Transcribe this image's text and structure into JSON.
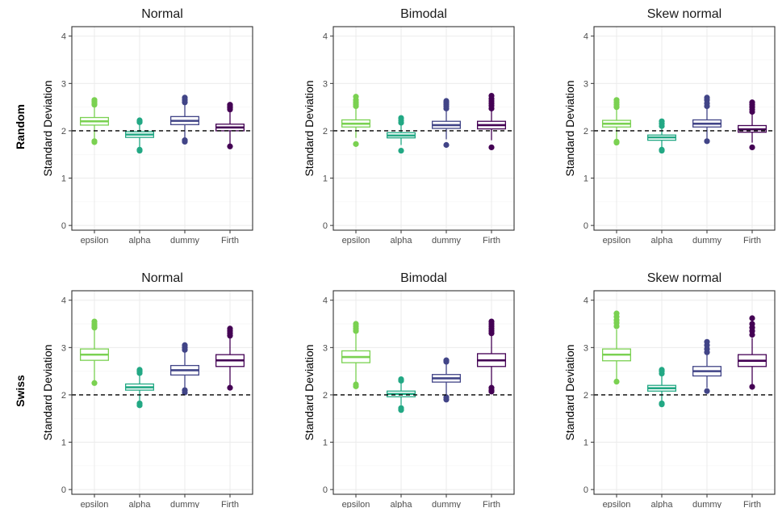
{
  "row_labels": [
    "Random",
    "Swiss"
  ],
  "colors": {
    "epsilon": "#7AD151",
    "alpha": "#22A884",
    "dummy": "#414487",
    "Firth": "#440154"
  },
  "chart_data": [
    {
      "type": "boxplot",
      "row": "Random",
      "title": "Normal",
      "ylabel": "Standard Deviation",
      "ylim": [
        -0.1,
        4.2
      ],
      "yticks": [
        0,
        1,
        2,
        3,
        4
      ],
      "reference_line": 2,
      "categories": [
        "epsilon",
        "alpha",
        "dummy",
        "Firth"
      ],
      "boxes": [
        {
          "name": "epsilon",
          "low": 1.8,
          "q1": 2.12,
          "median": 2.2,
          "q3": 2.28,
          "high": 2.5,
          "outliers": [
            2.55,
            2.58,
            2.62,
            2.65,
            1.78,
            1.76
          ]
        },
        {
          "name": "alpha",
          "low": 1.65,
          "q1": 1.86,
          "median": 1.92,
          "q3": 1.98,
          "high": 2.15,
          "outliers": [
            2.18,
            2.2,
            2.22,
            1.6,
            1.58
          ]
        },
        {
          "name": "dummy",
          "low": 1.82,
          "q1": 2.13,
          "median": 2.21,
          "q3": 2.3,
          "high": 2.55,
          "outliers": [
            2.6,
            2.65,
            2.7,
            1.8,
            1.77
          ]
        },
        {
          "name": "Firth",
          "low": 1.72,
          "q1": 2.0,
          "median": 2.07,
          "q3": 2.14,
          "high": 2.42,
          "outliers": [
            2.45,
            2.48,
            2.5,
            2.53,
            2.55,
            1.67
          ]
        }
      ]
    },
    {
      "type": "boxplot",
      "row": "Random",
      "title": "Bimodal",
      "ylabel": "Standard Deviation",
      "ylim": [
        -0.1,
        4.2
      ],
      "yticks": [
        0,
        1,
        2,
        3,
        4
      ],
      "reference_line": 2,
      "categories": [
        "epsilon",
        "alpha",
        "dummy",
        "Firth"
      ],
      "boxes": [
        {
          "name": "epsilon",
          "low": 1.85,
          "q1": 2.08,
          "median": 2.15,
          "q3": 2.23,
          "high": 2.48,
          "outliers": [
            2.52,
            2.56,
            2.6,
            2.65,
            2.72,
            1.72
          ]
        },
        {
          "name": "alpha",
          "low": 1.7,
          "q1": 1.85,
          "median": 1.9,
          "q3": 1.96,
          "high": 2.12,
          "outliers": [
            2.17,
            2.22,
            2.27,
            1.58
          ]
        },
        {
          "name": "dummy",
          "low": 1.82,
          "q1": 2.05,
          "median": 2.12,
          "q3": 2.2,
          "high": 2.42,
          "outliers": [
            2.47,
            2.52,
            2.56,
            2.6,
            2.63,
            1.7
          ]
        },
        {
          "name": "Firth",
          "low": 1.8,
          "q1": 2.04,
          "median": 2.12,
          "q3": 2.2,
          "high": 2.42,
          "outliers": [
            2.47,
            2.53,
            2.58,
            2.63,
            2.68,
            2.74,
            1.65
          ]
        }
      ]
    },
    {
      "type": "boxplot",
      "row": "Random",
      "title": "Skew normal",
      "ylabel": "Standard Deviation",
      "ylim": [
        -0.1,
        4.2
      ],
      "yticks": [
        0,
        1,
        2,
        3,
        4
      ],
      "reference_line": 2,
      "categories": [
        "epsilon",
        "alpha",
        "dummy",
        "Firth"
      ],
      "boxes": [
        {
          "name": "epsilon",
          "low": 1.82,
          "q1": 2.08,
          "median": 2.15,
          "q3": 2.22,
          "high": 2.45,
          "outliers": [
            2.5,
            2.55,
            2.6,
            2.65,
            1.77,
            1.75
          ]
        },
        {
          "name": "alpha",
          "low": 1.65,
          "q1": 1.8,
          "median": 1.86,
          "q3": 1.91,
          "high": 2.06,
          "outliers": [
            2.1,
            2.15,
            2.2,
            1.6,
            1.58
          ]
        },
        {
          "name": "dummy",
          "low": 1.83,
          "q1": 2.08,
          "median": 2.15,
          "q3": 2.23,
          "high": 2.48,
          "outliers": [
            2.52,
            2.58,
            2.65,
            2.7,
            1.78
          ]
        },
        {
          "name": "Firth",
          "low": 1.75,
          "q1": 1.97,
          "median": 2.03,
          "q3": 2.11,
          "high": 2.35,
          "outliers": [
            2.4,
            2.45,
            2.5,
            2.55,
            2.6,
            1.65
          ]
        }
      ]
    },
    {
      "type": "boxplot",
      "row": "Swiss",
      "title": "Normal",
      "ylabel": "Standard Deviation",
      "ylim": [
        -0.1,
        4.2
      ],
      "yticks": [
        0,
        1,
        2,
        3,
        4
      ],
      "reference_line": 2,
      "categories": [
        "epsilon",
        "alpha",
        "dummy",
        "Firth"
      ],
      "boxes": [
        {
          "name": "epsilon",
          "low": 2.3,
          "q1": 2.73,
          "median": 2.85,
          "q3": 2.97,
          "high": 3.38,
          "outliers": [
            3.42,
            3.46,
            3.5,
            3.55,
            2.25
          ]
        },
        {
          "name": "alpha",
          "low": 1.88,
          "q1": 2.1,
          "median": 2.16,
          "q3": 2.23,
          "high": 2.42,
          "outliers": [
            2.46,
            2.5,
            2.53,
            1.82,
            1.78
          ]
        },
        {
          "name": "dummy",
          "low": 2.15,
          "q1": 2.42,
          "median": 2.52,
          "q3": 2.62,
          "high": 2.9,
          "outliers": [
            2.95,
            3.0,
            3.05,
            2.1,
            2.05
          ]
        },
        {
          "name": "Firth",
          "low": 2.18,
          "q1": 2.6,
          "median": 2.73,
          "q3": 2.85,
          "high": 3.2,
          "outliers": [
            3.25,
            3.3,
            3.35,
            3.4,
            2.15
          ]
        }
      ]
    },
    {
      "type": "boxplot",
      "row": "Swiss",
      "title": "Bimodal",
      "ylabel": "Standard Deviation",
      "ylim": [
        -0.1,
        4.2
      ],
      "yticks": [
        0,
        1,
        2,
        3,
        4
      ],
      "reference_line": 2,
      "categories": [
        "epsilon",
        "alpha",
        "dummy",
        "Firth"
      ],
      "boxes": [
        {
          "name": "epsilon",
          "low": 2.25,
          "q1": 2.68,
          "median": 2.8,
          "q3": 2.93,
          "high": 3.3,
          "outliers": [
            3.35,
            3.4,
            3.45,
            3.5,
            2.22,
            2.18
          ]
        },
        {
          "name": "alpha",
          "low": 1.78,
          "q1": 1.96,
          "median": 2.02,
          "q3": 2.08,
          "high": 2.25,
          "outliers": [
            2.3,
            2.33,
            1.72,
            1.68
          ]
        },
        {
          "name": "dummy",
          "low": 1.98,
          "q1": 2.27,
          "median": 2.35,
          "q3": 2.43,
          "high": 2.65,
          "outliers": [
            2.7,
            2.73,
            1.95,
            1.9
          ]
        },
        {
          "name": "Firth",
          "low": 2.2,
          "q1": 2.6,
          "median": 2.73,
          "q3": 2.87,
          "high": 3.25,
          "outliers": [
            3.3,
            3.35,
            3.4,
            3.45,
            3.5,
            3.55,
            2.15,
            2.1,
            2.07
          ]
        }
      ]
    },
    {
      "type": "boxplot",
      "row": "Swiss",
      "title": "Skew normal",
      "ylabel": "Standard Deviation",
      "ylim": [
        -0.1,
        4.2
      ],
      "yticks": [
        0,
        1,
        2,
        3,
        4
      ],
      "reference_line": 2,
      "categories": [
        "epsilon",
        "alpha",
        "dummy",
        "Firth"
      ],
      "boxes": [
        {
          "name": "epsilon",
          "low": 2.32,
          "q1": 2.72,
          "median": 2.85,
          "q3": 2.97,
          "high": 3.38,
          "outliers": [
            3.45,
            3.52,
            3.58,
            3.65,
            3.72,
            2.28
          ]
        },
        {
          "name": "alpha",
          "low": 1.88,
          "q1": 2.08,
          "median": 2.14,
          "q3": 2.2,
          "high": 2.4,
          "outliers": [
            2.45,
            2.5,
            2.53,
            1.82,
            1.8
          ]
        },
        {
          "name": "dummy",
          "low": 2.15,
          "q1": 2.4,
          "median": 2.5,
          "q3": 2.6,
          "high": 2.85,
          "outliers": [
            2.9,
            2.97,
            3.05,
            3.12,
            2.08
          ]
        },
        {
          "name": "Firth",
          "low": 2.22,
          "q1": 2.6,
          "median": 2.72,
          "q3": 2.85,
          "high": 3.2,
          "outliers": [
            3.27,
            3.35,
            3.42,
            3.5,
            3.62,
            2.17
          ]
        }
      ]
    }
  ]
}
